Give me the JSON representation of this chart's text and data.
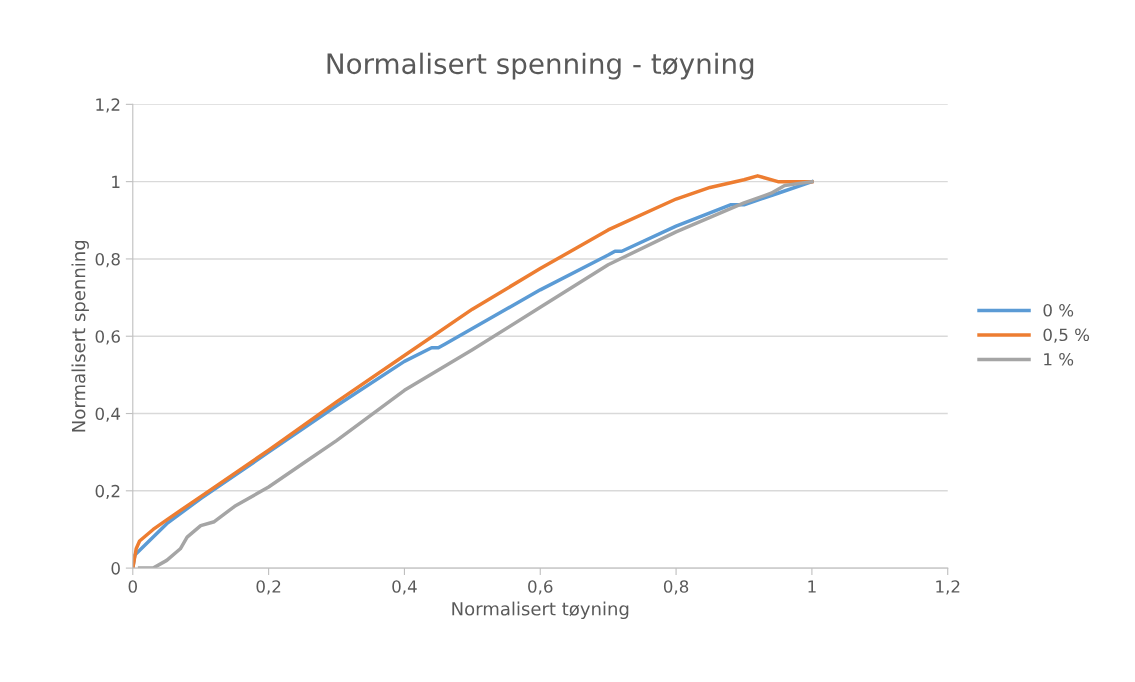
{
  "chart_data": {
    "type": "line",
    "title": "Normalisert spenning - tøyning",
    "xlabel": "Normalisert tøyning",
    "ylabel": "Normalisert spenning",
    "xlim": [
      0,
      1.2
    ],
    "xticks": [
      0,
      {
        "value": 0.2,
        "label": "0,2"
      },
      {
        "value": 0.4,
        "label": "0,4"
      },
      {
        "value": 0.6,
        "label": "0,6"
      },
      {
        "value": 0.8,
        "label": "0,8"
      },
      1,
      {
        "value": 1.2,
        "label": "1,2"
      }
    ],
    "ylim": [
      0,
      1.2
    ],
    "yticks": [
      0,
      {
        "value": 0.2,
        "label": "0,2"
      },
      {
        "value": 0.4,
        "label": "0,4"
      },
      {
        "value": 0.6,
        "label": "0,6"
      },
      {
        "value": 0.8,
        "label": "0,8"
      },
      1,
      {
        "value": 1.2,
        "label": "1,2"
      }
    ],
    "grid": "y",
    "legend": "right",
    "marker": "none",
    "line_style": "solid",
    "series": [
      {
        "name": "0 %",
        "color": "#5b9bd5",
        "x": [
          0,
          0.003,
          0.05,
          0.1,
          0.2,
          0.3,
          0.4,
          0.44,
          0.45,
          0.46,
          0.5,
          0.6,
          0.7,
          0.71,
          0.72,
          0.8,
          0.88,
          0.9,
          0.95,
          1.0
        ],
        "values": [
          0,
          0.034,
          0.115,
          0.18,
          0.3,
          0.42,
          0.535,
          0.57,
          0.57,
          0.58,
          0.62,
          0.72,
          0.81,
          0.82,
          0.82,
          0.885,
          0.94,
          0.94,
          0.97,
          1.0
        ]
      },
      {
        "name": "0,5 %",
        "color": "#ed7d31",
        "x": [
          0,
          0.005,
          0.01,
          0.03,
          0.05,
          0.1,
          0.2,
          0.3,
          0.4,
          0.5,
          0.6,
          0.7,
          0.8,
          0.85,
          0.9,
          0.92,
          0.95,
          1.0
        ],
        "values": [
          0,
          0.05,
          0.07,
          0.1,
          0.125,
          0.185,
          0.305,
          0.43,
          0.55,
          0.67,
          0.775,
          0.875,
          0.955,
          0.985,
          1.005,
          1.015,
          1.0,
          1.0
        ]
      },
      {
        "name": "1 %",
        "color": "#a5a5a5",
        "x": [
          0.01,
          0.03,
          0.05,
          0.07,
          0.08,
          0.1,
          0.12,
          0.15,
          0.2,
          0.25,
          0.3,
          0.4,
          0.5,
          0.6,
          0.7,
          0.8,
          0.9,
          0.94,
          0.96,
          1.0
        ],
        "values": [
          0,
          0,
          0.02,
          0.05,
          0.08,
          0.11,
          0.12,
          0.16,
          0.21,
          0.27,
          0.33,
          0.46,
          0.565,
          0.675,
          0.785,
          0.87,
          0.945,
          0.97,
          0.99,
          1.0
        ]
      }
    ]
  }
}
